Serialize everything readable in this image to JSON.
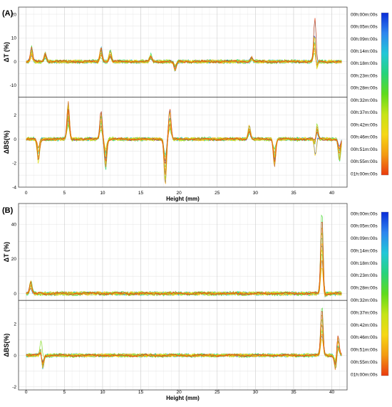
{
  "chart_data": [
    {
      "panel": "(A)",
      "type": "line",
      "xlabel": "Height (mm)",
      "x_ticks": [
        0,
        5,
        10,
        15,
        20,
        25,
        30,
        35,
        40
      ],
      "xlim": [
        -1,
        42
      ],
      "subplots": [
        {
          "ylabel": "ΔT (%)",
          "ylim": [
            -15,
            23
          ],
          "y_ticks": [
            -10,
            0,
            10,
            20
          ],
          "features": [
            {
              "x": 0.7,
              "y": 6
            },
            {
              "x": 2.5,
              "y": 4
            },
            {
              "x": 9.8,
              "y": 6
            },
            {
              "x": 11.0,
              "y": 5
            },
            {
              "x": 16.3,
              "y": 3
            },
            {
              "x": 19.5,
              "y": -4
            },
            {
              "x": 29.5,
              "y": 2
            },
            {
              "x": 37.8,
              "y": 22
            },
            {
              "x": 37.9,
              "y": -13
            }
          ]
        },
        {
          "ylabel": "ΔBS(%)",
          "ylim": [
            -4,
            3.5
          ],
          "y_ticks": [
            -4,
            -2,
            0,
            2
          ],
          "features": [
            {
              "x": 1.6,
              "y": -2
            },
            {
              "x": 5.5,
              "y": 3.2
            },
            {
              "x": 9.8,
              "y": 2.4
            },
            {
              "x": 10.4,
              "y": -2.5
            },
            {
              "x": 18.2,
              "y": -3.8
            },
            {
              "x": 18.8,
              "y": 2.5
            },
            {
              "x": 29.2,
              "y": 1.2
            },
            {
              "x": 32.5,
              "y": -2.3
            },
            {
              "x": 38.0,
              "y": 2.5
            },
            {
              "x": 37.9,
              "y": -2
            },
            {
              "x": 41.0,
              "y": -2
            }
          ]
        }
      ],
      "colorbar_labels": [
        "00h:00m:00s",
        "00h:05m:00s",
        "00h:09m:00s",
        "00h:14m:00s",
        "00h:18m:00s",
        "00h:23m:00s",
        "00h:28m:00s",
        "00h:32m:00s",
        "00h:37m:00s",
        "00h:42m:00s",
        "00h:46m:00s",
        "00h:51m:00s",
        "00h:55m:00s",
        "01h:00m:00s"
      ]
    },
    {
      "panel": "(B)",
      "type": "line",
      "xlabel": "Height (mm)",
      "x_ticks": [
        0,
        5,
        10,
        15,
        20,
        25,
        30,
        35,
        40
      ],
      "xlim": [
        -1,
        42
      ],
      "subplots": [
        {
          "ylabel": "ΔT (%)",
          "ylim": [
            -4,
            52
          ],
          "y_ticks": [
            0,
            20,
            40
          ],
          "features": [
            {
              "x": 0.6,
              "y": 8
            },
            {
              "x": 38.7,
              "y": 48
            },
            {
              "x": 39.0,
              "y": -3
            }
          ]
        },
        {
          "ylabel": "ΔBS(%)",
          "ylim": [
            -2.2,
            3.5
          ],
          "y_ticks": [
            -2,
            0,
            2
          ],
          "features": [
            {
              "x": 2.0,
              "y": 1.5
            },
            {
              "x": 2.1,
              "y": -1.8
            },
            {
              "x": 38.7,
              "y": 3.2
            },
            {
              "x": 40.8,
              "y": 1.4
            },
            {
              "x": 40.5,
              "y": -1.0
            }
          ]
        }
      ],
      "colorbar_labels": [
        "00h:00m:00s",
        "00h:05m:00s",
        "00h:09m:00s",
        "00h:14m:00s",
        "00h:18m:00s",
        "00h:23m:00s",
        "00h:28m:00s",
        "00h:32m:00s",
        "00h:37m:00s",
        "00h:42m:00s",
        "00h:46m:00s",
        "00h:51m:00s",
        "00h:55m:00s",
        "01h:00m:00s"
      ]
    }
  ],
  "colorbar_colors": [
    "#0a2cd8",
    "#2f86ef",
    "#22c7d8",
    "#27d37a",
    "#5fdb1c",
    "#c6e416",
    "#f6d715",
    "#f39a12",
    "#ea3a0e"
  ]
}
